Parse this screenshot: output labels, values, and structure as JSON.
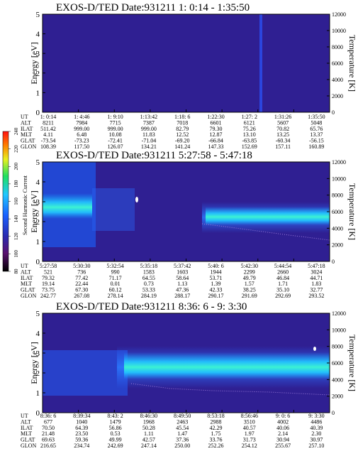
{
  "figure": {
    "panels": [
      {
        "id": "p1",
        "title": "EXOS-D/TED   Date:931211   1: 0:14 - 1:35:50",
        "ylabel_left": "Energy [eV]",
        "ylabel_right": "Temperature [K]",
        "left_ticks": [
          "0",
          "1",
          "2",
          "3",
          "4",
          "5"
        ],
        "right_ticks": [
          "0",
          "2000",
          "4000",
          "6000",
          "8000",
          "10000",
          "12000"
        ],
        "table_labels": [
          "UT",
          "ALT",
          "ILAT",
          "MLT",
          "GLAT",
          "GLON"
        ],
        "table_columns": [
          [
            "1: 0:14",
            "8211",
            "511.42",
            "4.11",
            "-73.54",
            "108.39"
          ],
          [
            "1: 4:46",
            "7984",
            "999.00",
            "6.48",
            "-73.23",
            "117.50"
          ],
          [
            "1: 9:10",
            "7715",
            "999.00",
            "10.08",
            "-72.41",
            "126.07"
          ],
          [
            "1:13:42",
            "7387",
            "999.00",
            "11.83",
            "-71.04",
            "134.21"
          ],
          [
            "1:18: 6",
            "7018",
            "82.79",
            "12.52",
            "-69.20",
            "141.24"
          ],
          [
            "1:22:30",
            "6601",
            "79.30",
            "12.87",
            "-66.84",
            "147.33"
          ],
          [
            "1:27: 2",
            "6121",
            "75.26",
            "13.10",
            "-63.85",
            "152.69"
          ],
          [
            "1:31:26",
            "5607",
            "70.82",
            "13.25",
            "-60.34",
            "157.11"
          ],
          [
            "1:35:50",
            "5048",
            "65.76",
            "13.37",
            "-56.15",
            "160.89"
          ]
        ]
      },
      {
        "id": "p2",
        "title": "EXOS-D/TED   Date:931211   5:27:58 - 5:47:18",
        "ylabel_left": "Energy [eV]",
        "ylabel_right": "Temperature [K]",
        "left_ticks": [
          "0",
          "1",
          "2",
          "3",
          "4",
          "5"
        ],
        "right_ticks": [
          "0",
          "2000",
          "4000",
          "6000",
          "8000",
          "10000",
          "12000"
        ],
        "table_labels": [
          "UT",
          "ALT",
          "ILAT",
          "MLT",
          "GLAT",
          "GLON"
        ],
        "table_columns": [
          [
            "5:27:58",
            "521",
            "79.32",
            "19.14",
            "73.75",
            "242.77"
          ],
          [
            "5:30:30",
            "736",
            "77.42",
            "22.44",
            "67.30",
            "267.08"
          ],
          [
            "5:32:54",
            "990",
            "71.17",
            "0.01",
            "60.12",
            "278.14"
          ],
          [
            "5:35:18",
            "1583",
            "64.55",
            "0.73",
            "53.33",
            "284.19"
          ],
          [
            "5:37:42",
            "1603",
            "58.64",
            "1.13",
            "47.36",
            "288.17"
          ],
          [
            "5:40: 6",
            "1944",
            "53.71",
            "1.39",
            "42.33",
            "290.17"
          ],
          [
            "5:42:30",
            "2299",
            "49.79",
            "1.57",
            "38.25",
            "291.69"
          ],
          [
            "5:44:54",
            "2660",
            "46.84",
            "1.71",
            "35.10",
            "292.69"
          ],
          [
            "5:47:18",
            "3024",
            "44.71",
            "1.83",
            "32.77",
            "293.52"
          ]
        ]
      },
      {
        "id": "p3",
        "title": "EXOS-D/TED   Date:931211   8:36: 6 - 9: 3:30",
        "ylabel_left": "Energy [eV]",
        "ylabel_right": "Temperature [K]",
        "left_ticks": [
          "0",
          "1",
          "2",
          "3",
          "4",
          "5"
        ],
        "right_ticks": [
          "0",
          "2000",
          "4000",
          "6000",
          "8000",
          "10000",
          "12000"
        ],
        "table_labels": [
          "UT",
          "ALT",
          "ILAT",
          "MLT",
          "GLAT",
          "GLON"
        ],
        "table_columns": [
          [
            "8:36: 6",
            "677",
            "70.50",
            "21.48",
            "69.63",
            "216.65"
          ],
          [
            "8:39:34",
            "1040",
            "64.39",
            "23.50",
            "59.36",
            "234.74"
          ],
          [
            "8:43: 2",
            "1479",
            "56.86",
            "0.53",
            "49.99",
            "242.69"
          ],
          [
            "8:46:30",
            "1968",
            "50.28",
            "1.11",
            "42.57",
            "247.14"
          ],
          [
            "8:49:50",
            "2463",
            "45.54",
            "1.47",
            "37.36",
            "250.00"
          ],
          [
            "8:53:18",
            "2988",
            "42.29",
            "1.75",
            "33.76",
            "252.26"
          ],
          [
            "8:56:46",
            "3510",
            "40.57",
            "1.97",
            "31.73",
            "254.12"
          ],
          [
            "9: 0: 6",
            "4002",
            "40.06",
            "2.14",
            "30.94",
            "255.67"
          ],
          [
            "9: 3:30",
            "4486",
            "40.39",
            "2.30",
            "30.97",
            "257.10"
          ]
        ]
      }
    ],
    "colorbar": {
      "label": "Second Harmonic Current",
      "ticks": [
        "80",
        "100",
        "120",
        "140",
        "160",
        "180",
        "200",
        "220",
        "240"
      ]
    }
  },
  "chart_data": {
    "type": "heatmap",
    "panels": [
      {
        "title": "EXOS-D/TED   Date:931211   1: 0:14 - 1:35:50",
        "ylabel": "Energy [eV]",
        "y2label": "Temperature [K]",
        "ylim": [
          0,
          5
        ],
        "y2lim": [
          0,
          12000
        ],
        "x_ticks": [
          "1: 0:14",
          "1: 4:46",
          "1: 9:10",
          "1:13:42",
          "1:18: 6",
          "1:22:30",
          "1:27: 2",
          "1:31:26",
          "1:35:50"
        ],
        "intensity_level": "low (~100)"
      },
      {
        "title": "EXOS-D/TED   Date:931211   5:27:58 - 5:47:18",
        "ylabel": "Energy [eV]",
        "y2label": "Temperature [K]",
        "ylim": [
          0,
          5
        ],
        "y2lim": [
          0,
          12000
        ],
        "x_ticks": [
          "5:27:58",
          "5:30:30",
          "5:32:54",
          "5:35:18",
          "5:37:42",
          "5:40: 6",
          "5:42:30",
          "5:44:54",
          "5:47:18"
        ],
        "intensity_level": "band near 2.0-2.5 eV, strongest at start and after 5:40"
      },
      {
        "title": "EXOS-D/TED   Date:931211   8:36: 6 - 9: 3:30",
        "ylabel": "Energy [eV]",
        "y2label": "Temperature [K]",
        "ylim": [
          0,
          5
        ],
        "y2lim": [
          0,
          12000
        ],
        "x_ticks": [
          "8:36: 6",
          "8:39:34",
          "8:43: 2",
          "8:46:30",
          "8:49:50",
          "8:53:18",
          "8:56:46",
          "9: 0: 6",
          "9: 3:30"
        ],
        "intensity_level": "strong band near 2.2-2.8 eV from 8:46 to 9:03"
      }
    ],
    "colorbar": {
      "label": "Second Harmonic Current",
      "range": [
        80,
        240
      ]
    }
  }
}
